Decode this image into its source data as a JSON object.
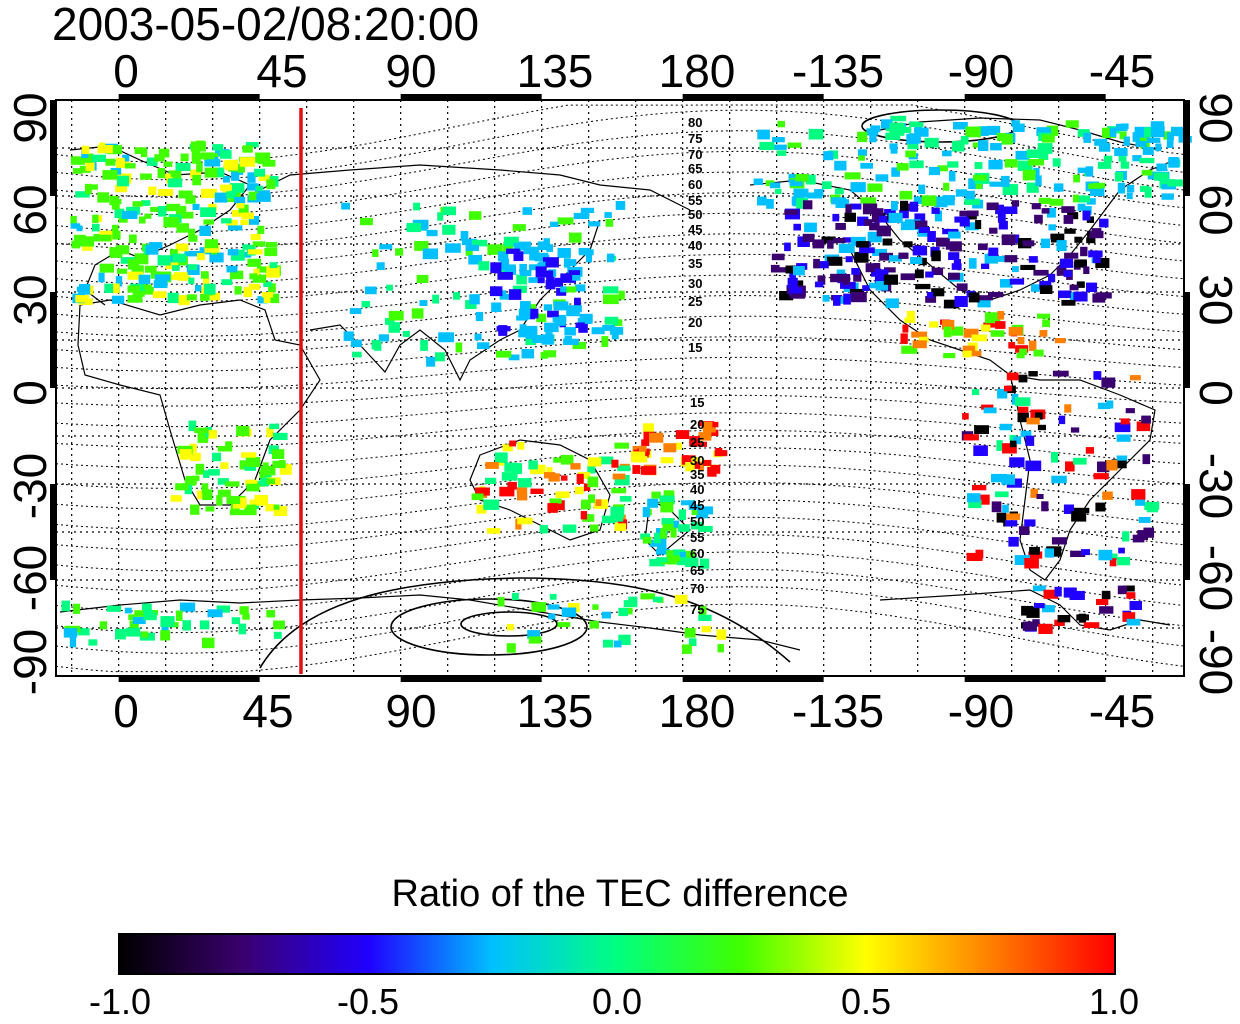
{
  "title": "2003-05-02/08:20:00",
  "axes": {
    "top_lon_ticks": [
      "0",
      "45",
      "90",
      "135",
      "180",
      "-135",
      "-90",
      "-45"
    ],
    "bottom_lon_ticks": [
      "0",
      "45",
      "90",
      "135",
      "180",
      "-135",
      "-90",
      "-45"
    ],
    "left_lat_ticks": [
      "90",
      "60",
      "30",
      "0",
      "-30",
      "-60",
      "-90"
    ],
    "right_lat_ticks": [
      "90",
      "60",
      "30",
      "0",
      "-30",
      "-60",
      "-90"
    ],
    "lon_range": [
      -20,
      340
    ],
    "lat_range": [
      -90,
      90
    ],
    "grid": "dotted, every 15 degrees"
  },
  "marker_line": {
    "lon": 55,
    "color": "#e01010"
  },
  "contour_labels": {
    "north": [
      "80",
      "75",
      "70",
      "65",
      "60",
      "55",
      "50",
      "45",
      "40",
      "35",
      "30",
      "25",
      "20",
      "15"
    ],
    "south": [
      "15",
      "20",
      "25",
      "30",
      "35",
      "40",
      "45",
      "50",
      "55",
      "60",
      "65",
      "70",
      "75"
    ]
  },
  "colorbar": {
    "title": "Ratio of the TEC difference",
    "ticks": [
      "-1.0",
      "-0.5",
      "0.0",
      "0.5",
      "1.0"
    ],
    "range": [
      -1.0,
      1.0
    ],
    "colors": [
      "#000000",
      "#3a0070",
      "#2000ff",
      "#00c0ff",
      "#00ff80",
      "#40ff00",
      "#ffff00",
      "#ff8000",
      "#ff0000"
    ]
  }
}
